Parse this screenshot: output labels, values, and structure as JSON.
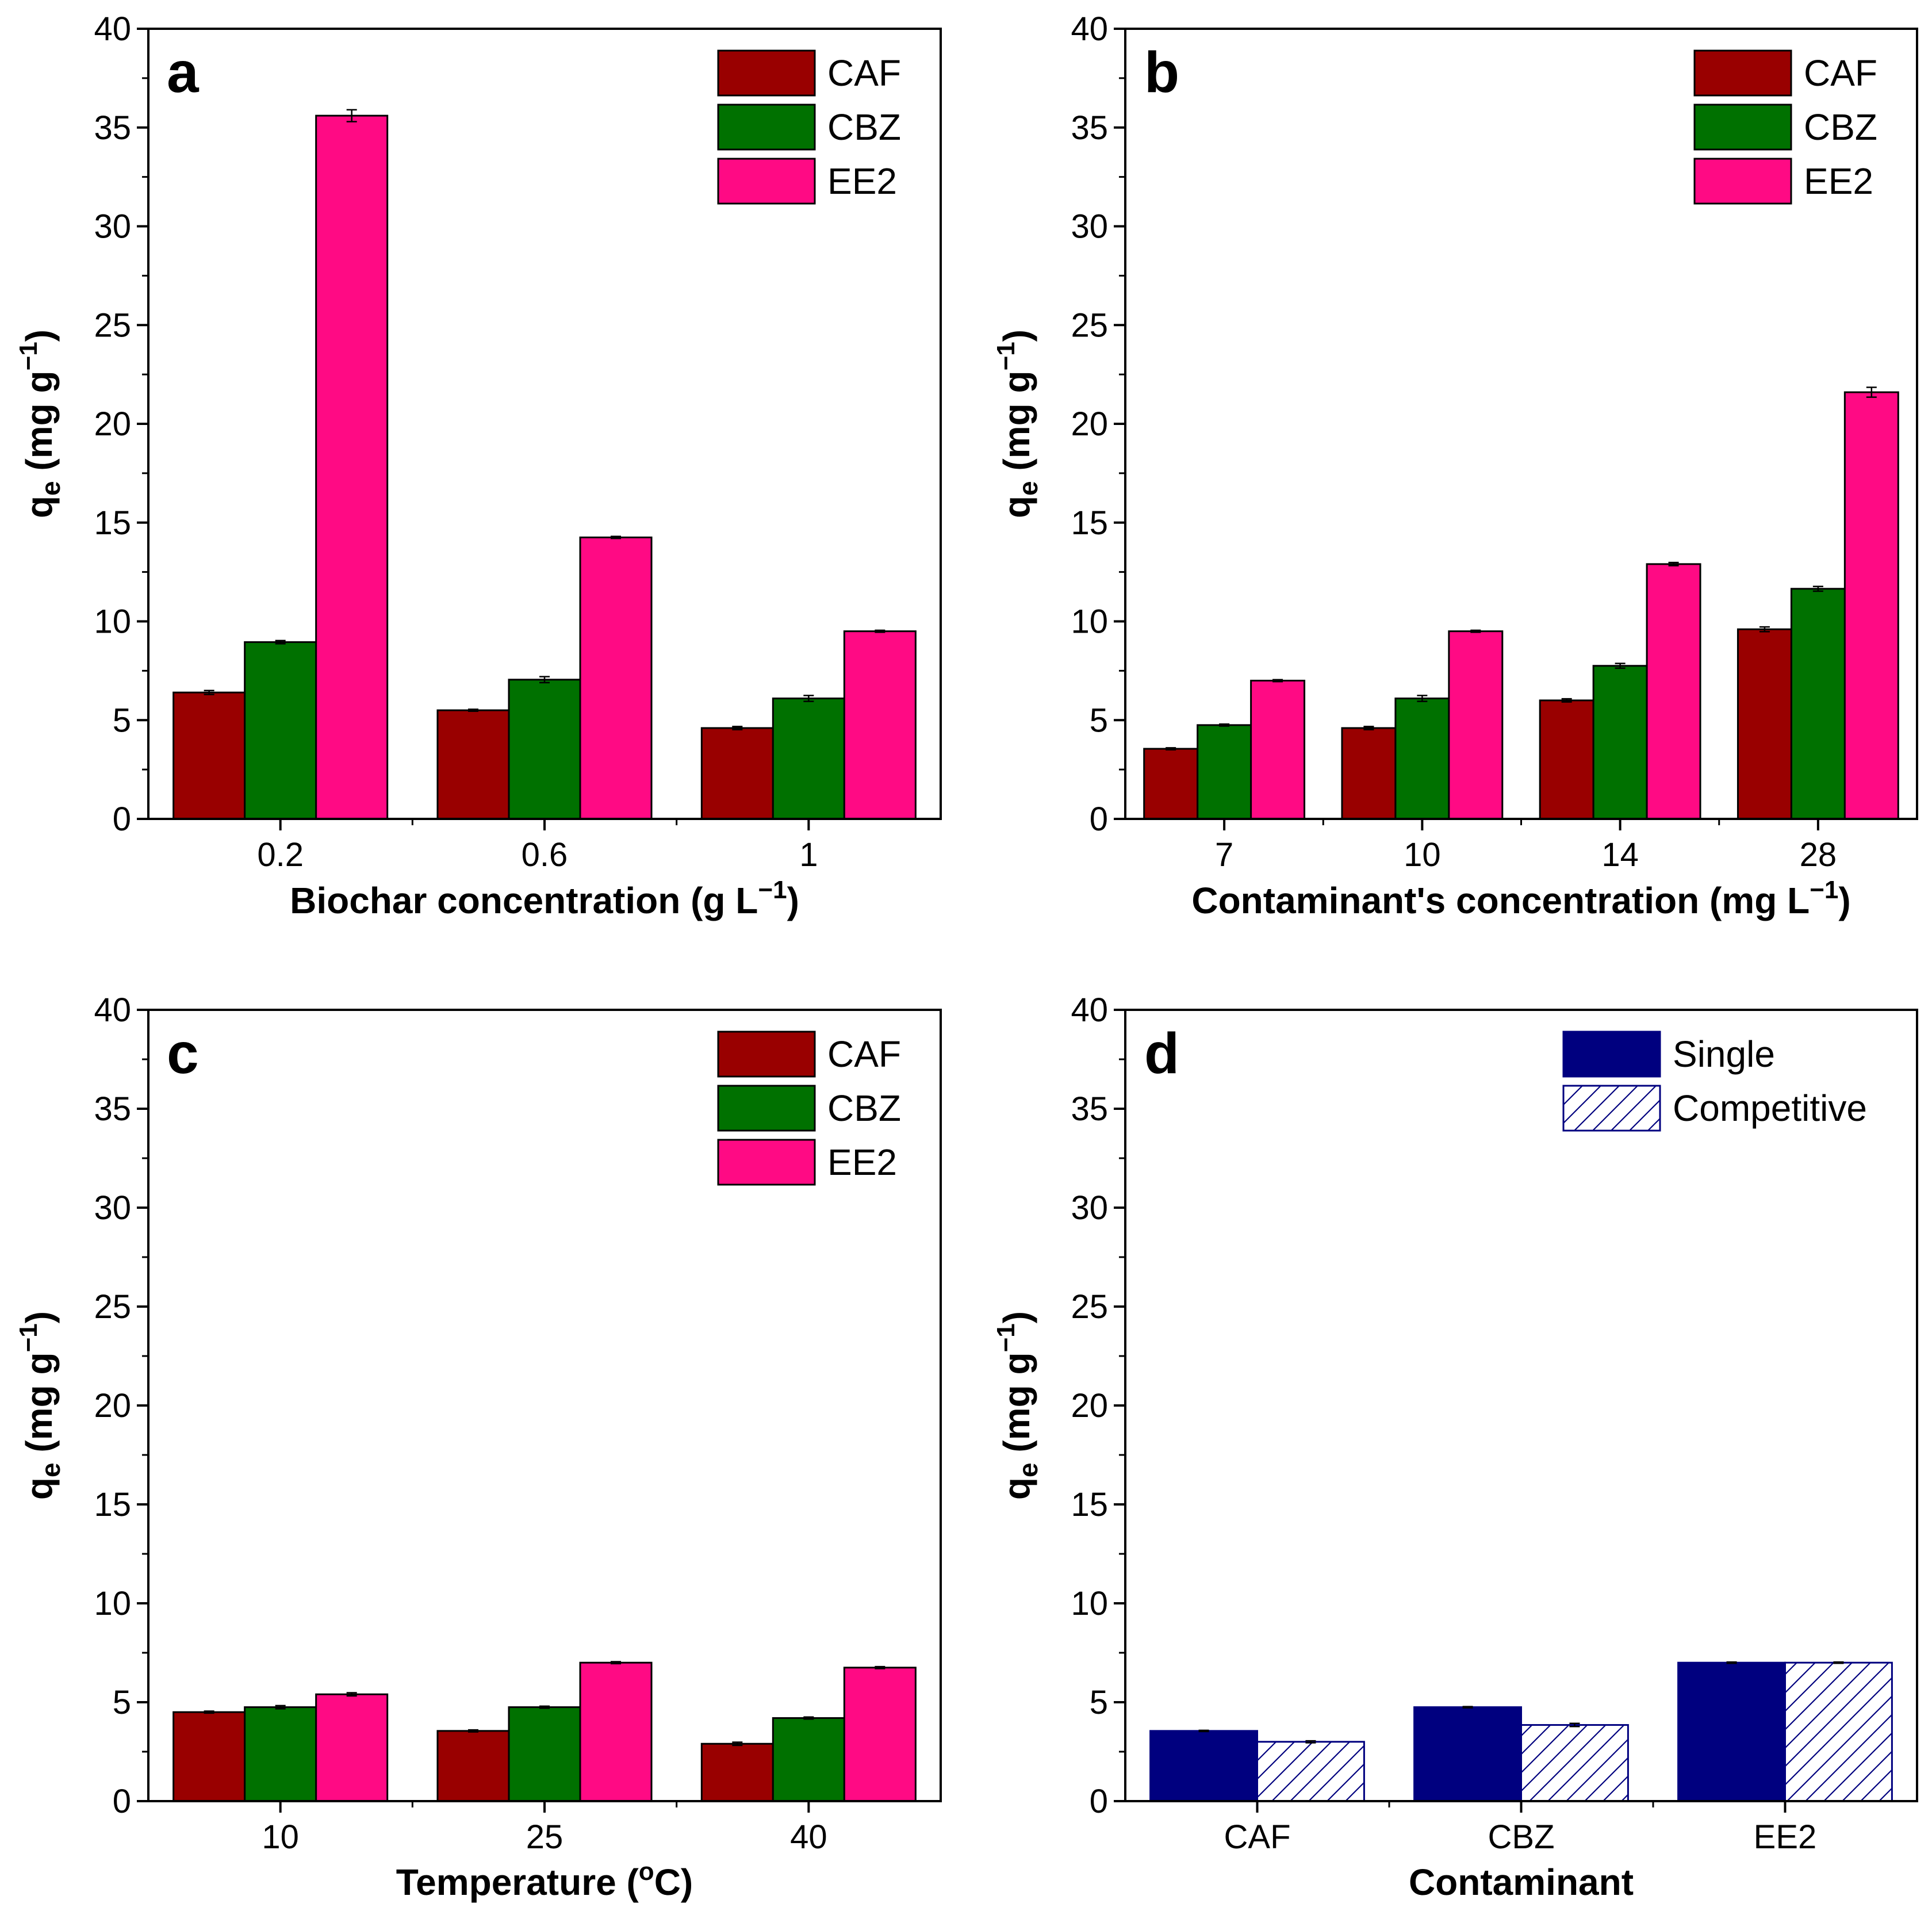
{
  "figure": {
    "panel_count": 4
  },
  "chart_data": [
    {
      "panel": "a",
      "type": "bar",
      "title": "",
      "xlabel": "Biochar concentration (g L",
      "xlabel_sup": "−1",
      "xlabel_close": ")",
      "ylabel_main": "q",
      "ylabel_sub": "e",
      "ylabel_rest": " (mg g",
      "ylabel_sup": "−1",
      "ylabel_close": ")",
      "ylim": [
        0,
        40
      ],
      "yticks": [
        "0",
        "5",
        "10",
        "15",
        "20",
        "25",
        "30",
        "35",
        "40"
      ],
      "categories": [
        "0.2",
        "0.6",
        "1"
      ],
      "series": [
        {
          "name": "CAF",
          "color": "#990000",
          "values": [
            6.4,
            5.5,
            4.6
          ],
          "errors": [
            0.1,
            0.05,
            0.08
          ]
        },
        {
          "name": "CBZ",
          "color": "#007100",
          "values": [
            8.95,
            7.05,
            6.1
          ],
          "errors": [
            0.08,
            0.15,
            0.15
          ]
        },
        {
          "name": "EE2",
          "color": "#ff0a84",
          "values": [
            35.6,
            14.25,
            9.5
          ],
          "errors": [
            0.3,
            0.05,
            0.05
          ]
        }
      ],
      "legend_position": "top-right"
    },
    {
      "panel": "b",
      "type": "bar",
      "title": "",
      "xlabel": "Contaminant's concentration (mg L",
      "xlabel_sup": "−1",
      "xlabel_close": ")",
      "ylabel_main": "q",
      "ylabel_sub": "e",
      "ylabel_rest": " (mg g",
      "ylabel_sup": "−1",
      "ylabel_close": ")",
      "ylim": [
        0,
        40
      ],
      "yticks": [
        "0",
        "5",
        "10",
        "15",
        "20",
        "25",
        "30",
        "35",
        "40"
      ],
      "categories": [
        "7",
        "10",
        "14",
        "28"
      ],
      "series": [
        {
          "name": "CAF",
          "color": "#990000",
          "values": [
            3.55,
            4.6,
            6.0,
            9.6
          ],
          "errors": [
            0.05,
            0.08,
            0.08,
            0.12
          ]
        },
        {
          "name": "CBZ",
          "color": "#007100",
          "values": [
            4.75,
            6.1,
            7.75,
            11.65
          ],
          "errors": [
            0.05,
            0.15,
            0.12,
            0.12
          ]
        },
        {
          "name": "EE2",
          "color": "#ff0a84",
          "values": [
            7.0,
            9.5,
            12.9,
            21.6
          ],
          "errors": [
            0.05,
            0.05,
            0.08,
            0.25
          ]
        }
      ],
      "legend_position": "top-right"
    },
    {
      "panel": "c",
      "type": "bar",
      "title": "",
      "xlabel": "Temperature (",
      "xlabel_sup": "o",
      "xlabel_close": "C)",
      "ylabel_main": "q",
      "ylabel_sub": "e",
      "ylabel_rest": " (mg g",
      "ylabel_sup": "−1",
      "ylabel_close": ")",
      "ylim": [
        0,
        40
      ],
      "yticks": [
        "0",
        "5",
        "10",
        "15",
        "20",
        "25",
        "30",
        "35",
        "40"
      ],
      "categories": [
        "10",
        "25",
        "40"
      ],
      "series": [
        {
          "name": "CAF",
          "color": "#990000",
          "values": [
            4.5,
            3.55,
            2.9
          ],
          "errors": [
            0.05,
            0.05,
            0.08
          ]
        },
        {
          "name": "CBZ",
          "color": "#007100",
          "values": [
            4.75,
            4.75,
            4.2
          ],
          "errors": [
            0.08,
            0.05,
            0.05
          ]
        },
        {
          "name": "EE2",
          "color": "#ff0a84",
          "values": [
            5.4,
            7.0,
            6.75
          ],
          "errors": [
            0.08,
            0.05,
            0.05
          ]
        }
      ],
      "legend_position": "top-right"
    },
    {
      "panel": "d",
      "type": "bar",
      "title": "",
      "xlabel": "Contaminant",
      "xlabel_sup": "",
      "xlabel_close": "",
      "ylabel_main": "q",
      "ylabel_sub": "e",
      "ylabel_rest": " (mg g",
      "ylabel_sup": "−1",
      "ylabel_close": ")",
      "ylim": [
        0,
        40
      ],
      "yticks": [
        "0",
        "5",
        "10",
        "15",
        "20",
        "25",
        "30",
        "35",
        "40"
      ],
      "categories": [
        "CAF",
        "CBZ",
        "EE2"
      ],
      "series": [
        {
          "name": "Single",
          "color": "#00007f",
          "pattern": "solid",
          "values": [
            3.55,
            4.75,
            7.0
          ],
          "errors": [
            0.03,
            0.03,
            0.03
          ]
        },
        {
          "name": "Competitive",
          "color": "#00007f",
          "pattern": "hatch",
          "values": [
            3.0,
            3.85,
            7.0
          ],
          "errors": [
            0.05,
            0.08,
            0.03
          ]
        }
      ],
      "legend_position": "top-right"
    }
  ]
}
